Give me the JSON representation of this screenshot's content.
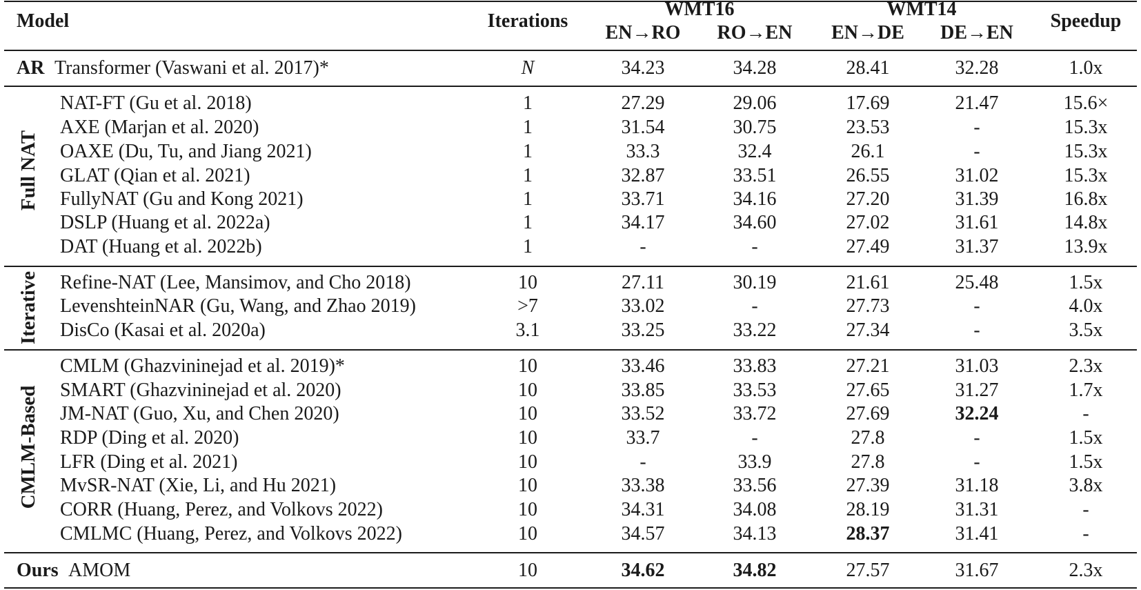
{
  "header": {
    "model": "Model",
    "iterations": "Iterations",
    "wmt16": "WMT16",
    "wmt14": "WMT14",
    "speedup": "Speedup",
    "en_ro": "EN→RO",
    "ro_en": "RO→EN",
    "en_de": "EN→DE",
    "de_en": "DE→EN"
  },
  "groups": {
    "ar": "AR",
    "full_nat": "Full NAT",
    "iterative": "Iterative",
    "cmlm_based": "CMLM-Based",
    "ours": "Ours"
  },
  "rows": [
    {
      "model": "Transformer (Vaswani et al. 2017)*",
      "iterations": "N",
      "en_ro": "34.23",
      "ro_en": "34.28",
      "en_de": "28.41",
      "de_en": "32.28",
      "speedup": "1.0x"
    },
    {
      "model": "NAT-FT (Gu et al. 2018)",
      "iterations": "1",
      "en_ro": "27.29",
      "ro_en": "29.06",
      "en_de": "17.69",
      "de_en": "21.47",
      "speedup": "15.6×"
    },
    {
      "model": "AXE (Marjan et al. 2020)",
      "iterations": "1",
      "en_ro": "31.54",
      "ro_en": "30.75",
      "en_de": "23.53",
      "de_en": "-",
      "speedup": "15.3x"
    },
    {
      "model": "OAXE (Du, Tu, and Jiang 2021)",
      "iterations": "1",
      "en_ro": "33.3",
      "ro_en": "32.4",
      "en_de": "26.1",
      "de_en": "-",
      "speedup": "15.3x"
    },
    {
      "model": "GLAT (Qian et al. 2021)",
      "iterations": "1",
      "en_ro": "32.87",
      "ro_en": "33.51",
      "en_de": "26.55",
      "de_en": "31.02",
      "speedup": "15.3x"
    },
    {
      "model": "FullyNAT (Gu and Kong 2021)",
      "iterations": "1",
      "en_ro": "33.71",
      "ro_en": "34.16",
      "en_de": "27.20",
      "de_en": "31.39",
      "speedup": "16.8x"
    },
    {
      "model": "DSLP (Huang et al. 2022a)",
      "iterations": "1",
      "en_ro": "34.17",
      "ro_en": "34.60",
      "en_de": "27.02",
      "de_en": "31.61",
      "speedup": "14.8x"
    },
    {
      "model": "DAT (Huang et al. 2022b)",
      "iterations": "1",
      "en_ro": "-",
      "ro_en": "-",
      "en_de": "27.49",
      "de_en": "31.37",
      "speedup": "13.9x"
    },
    {
      "model": "Refine-NAT (Lee, Mansimov, and Cho 2018)",
      "iterations": "10",
      "en_ro": "27.11",
      "ro_en": "30.19",
      "en_de": "21.61",
      "de_en": "25.48",
      "speedup": "1.5x"
    },
    {
      "model": "LevenshteinNAR (Gu, Wang, and Zhao 2019)",
      "iterations": ">7",
      "en_ro": "33.02",
      "ro_en": "-",
      "en_de": "27.73",
      "de_en": "-",
      "speedup": "4.0x"
    },
    {
      "model": "DisCo (Kasai et al. 2020a)",
      "iterations": "3.1",
      "en_ro": "33.25",
      "ro_en": "33.22",
      "en_de": "27.34",
      "de_en": "-",
      "speedup": "3.5x"
    },
    {
      "model": "CMLM (Ghazvininejad et al. 2019)*",
      "iterations": "10",
      "en_ro": "33.46",
      "ro_en": "33.83",
      "en_de": "27.21",
      "de_en": "31.03",
      "speedup": "2.3x"
    },
    {
      "model": "SMART (Ghazvininejad et al. 2020)",
      "iterations": "10",
      "en_ro": "33.85",
      "ro_en": "33.53",
      "en_de": "27.65",
      "de_en": "31.27",
      "speedup": "1.7x"
    },
    {
      "model": "JM-NAT (Guo, Xu, and Chen 2020)",
      "iterations": "10",
      "en_ro": "33.52",
      "ro_en": "33.72",
      "en_de": "27.69",
      "de_en": "32.24",
      "speedup": "-"
    },
    {
      "model": "RDP (Ding et al. 2020)",
      "iterations": "10",
      "en_ro": "33.7",
      "ro_en": "-",
      "en_de": "27.8",
      "de_en": "-",
      "speedup": "1.5x"
    },
    {
      "model": "LFR (Ding et al. 2021)",
      "iterations": "10",
      "en_ro": "-",
      "ro_en": "33.9",
      "en_de": "27.8",
      "de_en": "-",
      "speedup": "1.5x"
    },
    {
      "model": "MvSR-NAT (Xie, Li, and Hu 2021)",
      "iterations": "10",
      "en_ro": "33.38",
      "ro_en": "33.56",
      "en_de": "27.39",
      "de_en": "31.18",
      "speedup": "3.8x"
    },
    {
      "model": "CORR (Huang, Perez, and Volkovs 2022)",
      "iterations": "10",
      "en_ro": "34.31",
      "ro_en": "34.08",
      "en_de": "28.19",
      "de_en": "31.31",
      "speedup": "-"
    },
    {
      "model": "CMLMC (Huang, Perez, and Volkovs 2022)",
      "iterations": "10",
      "en_ro": "34.57",
      "ro_en": "34.13",
      "en_de": "28.37",
      "de_en": "31.41",
      "speedup": "-"
    },
    {
      "model": "AMOM",
      "iterations": "10",
      "en_ro": "34.62",
      "ro_en": "34.82",
      "en_de": "27.57",
      "de_en": "31.67",
      "speedup": "2.3x"
    }
  ]
}
